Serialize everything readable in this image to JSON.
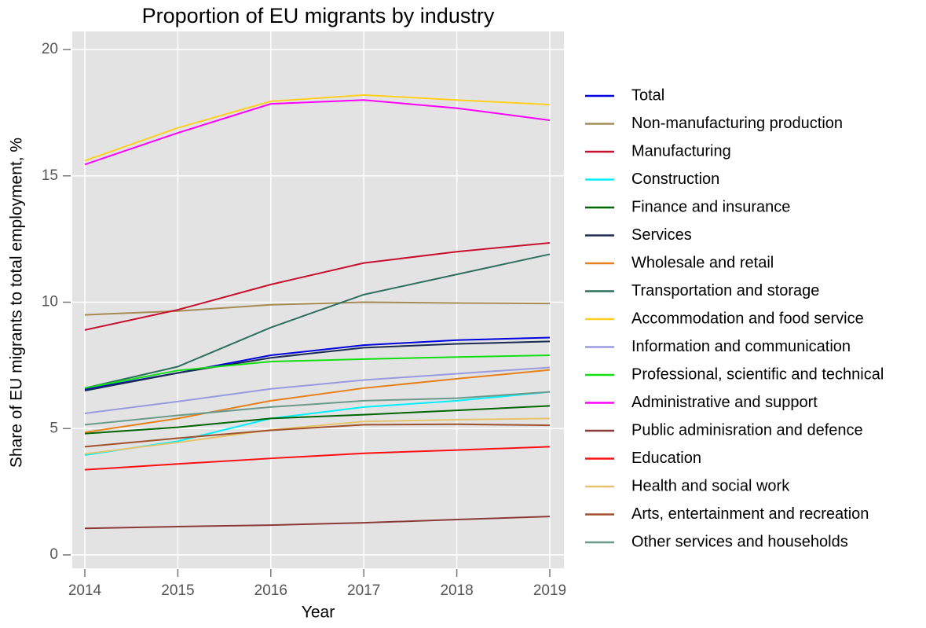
{
  "chart_data": {
    "type": "line",
    "title": "Proportion of EU migrants by industry",
    "xlabel": "Year",
    "ylabel": "Share of EU migrants to total employment, %",
    "x": [
      2014,
      2015,
      2016,
      2017,
      2018,
      2019
    ],
    "xlim": [
      2014,
      2019
    ],
    "xticks": [
      2014,
      2015,
      2016,
      2017,
      2018,
      2019
    ],
    "ylim": [
      0,
      20
    ],
    "yticks": [
      0,
      5,
      10,
      15,
      20
    ],
    "grid": true,
    "legend": "right",
    "series": [
      {
        "name": "Total",
        "color": "#0000e0",
        "values": [
          6.55,
          7.2,
          7.9,
          8.3,
          8.5,
          8.6
        ]
      },
      {
        "name": "Non-manufacturing production",
        "color": "#a68b54",
        "values": [
          9.5,
          9.65,
          9.9,
          10.0,
          9.97,
          9.95
        ]
      },
      {
        "name": "Manufacturing",
        "color": "#c8102e",
        "values": [
          8.9,
          9.7,
          10.7,
          11.55,
          12.0,
          12.35
        ]
      },
      {
        "name": "Construction",
        "color": "#00f0ff",
        "values": [
          3.95,
          4.5,
          5.4,
          5.85,
          6.1,
          6.45
        ]
      },
      {
        "name": "Finance and insurance",
        "color": "#006400",
        "values": [
          4.8,
          5.05,
          5.4,
          5.55,
          5.72,
          5.9
        ]
      },
      {
        "name": "Services",
        "color": "#1a2a50",
        "values": [
          6.5,
          7.2,
          7.8,
          8.2,
          8.35,
          8.45
        ]
      },
      {
        "name": "Wholesale and retail",
        "color": "#e8801a",
        "values": [
          4.85,
          5.4,
          6.1,
          6.6,
          6.97,
          7.32
        ]
      },
      {
        "name": "Transportation and storage",
        "color": "#2e7060",
        "values": [
          6.6,
          7.45,
          9.0,
          10.3,
          11.1,
          11.9
        ]
      },
      {
        "name": "Accommodation and food service",
        "color": "#ffd020",
        "values": [
          15.6,
          16.9,
          17.95,
          18.2,
          18.0,
          17.82
        ]
      },
      {
        "name": "Information and communication",
        "color": "#9a9ae0",
        "values": [
          5.6,
          6.07,
          6.57,
          6.92,
          7.17,
          7.42
        ]
      },
      {
        "name": "Professional, scientific and technical",
        "color": "#10e010",
        "values": [
          6.6,
          7.3,
          7.65,
          7.75,
          7.83,
          7.9
        ]
      },
      {
        "name": "Administrative and support",
        "color": "#ff00ff",
        "values": [
          15.45,
          16.7,
          17.85,
          18.0,
          17.68,
          17.2
        ]
      },
      {
        "name": "Public adminisration and defence",
        "color": "#8b3a3a",
        "values": [
          1.05,
          1.12,
          1.18,
          1.27,
          1.4,
          1.52
        ]
      },
      {
        "name": "Education",
        "color": "#ff1010",
        "values": [
          3.37,
          3.6,
          3.82,
          4.02,
          4.15,
          4.28
        ]
      },
      {
        "name": "Health and social work",
        "color": "#e6c46c",
        "values": [
          4.0,
          4.45,
          4.95,
          5.28,
          5.35,
          5.4
        ]
      },
      {
        "name": "Arts, entertainment and recreation",
        "color": "#a0522d",
        "values": [
          4.28,
          4.62,
          4.93,
          5.15,
          5.17,
          5.13
        ]
      },
      {
        "name": "Other services and households",
        "color": "#6b9a8b",
        "values": [
          5.15,
          5.52,
          5.85,
          6.1,
          6.2,
          6.45
        ]
      }
    ]
  }
}
